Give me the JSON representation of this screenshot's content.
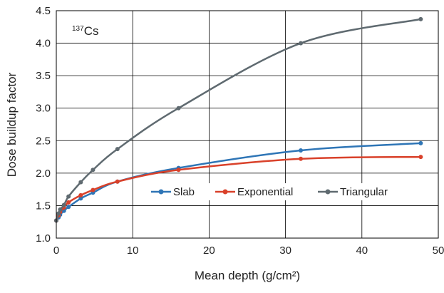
{
  "chart_data": {
    "type": "line",
    "xlabel": "Mean depth (g/cm²)",
    "ylabel": "Dose buildup factor",
    "xlim": [
      0,
      50
    ],
    "ylim": [
      1.0,
      4.5
    ],
    "xticks": [
      0,
      10,
      20,
      30,
      40,
      50
    ],
    "yticks": [
      1.0,
      1.5,
      2.0,
      2.5,
      3.0,
      3.5,
      4.0,
      4.5
    ],
    "xtick_labels": [
      "0",
      "10",
      "20",
      "30",
      "40",
      "50"
    ],
    "ytick_labels": [
      "1.0",
      "1.5",
      "2.0",
      "2.5",
      "3.0",
      "3.5",
      "4.0",
      "4.5"
    ],
    "grid": true,
    "legend_position": "center-right",
    "annotation": {
      "superscript": "137",
      "text": "Cs"
    },
    "series": [
      {
        "name": "Slab",
        "color": "#2e75b6",
        "x": [
          0,
          0.3,
          0.5,
          1.0,
          1.6,
          3.2,
          4.8,
          8.0,
          16.0,
          32.0,
          47.7
        ],
        "y": [
          1.27,
          1.32,
          1.36,
          1.42,
          1.48,
          1.61,
          1.7,
          1.87,
          2.08,
          2.35,
          2.46
        ]
      },
      {
        "name": "Exponential",
        "color": "#d9412a",
        "x": [
          0,
          0.3,
          0.5,
          1.0,
          1.6,
          3.2,
          4.8,
          8.0,
          16.0,
          32.0,
          47.7
        ],
        "y": [
          1.27,
          1.35,
          1.4,
          1.47,
          1.55,
          1.66,
          1.74,
          1.87,
          2.05,
          2.22,
          2.25
        ]
      },
      {
        "name": "Triangular",
        "color": "#5f6a70",
        "x": [
          0,
          0.3,
          0.5,
          1.0,
          1.6,
          3.2,
          4.8,
          8.0,
          16.0,
          32.0,
          47.7
        ],
        "y": [
          1.27,
          1.38,
          1.44,
          1.51,
          1.64,
          1.86,
          2.05,
          2.37,
          3.0,
          4.0,
          4.37
        ]
      }
    ]
  }
}
